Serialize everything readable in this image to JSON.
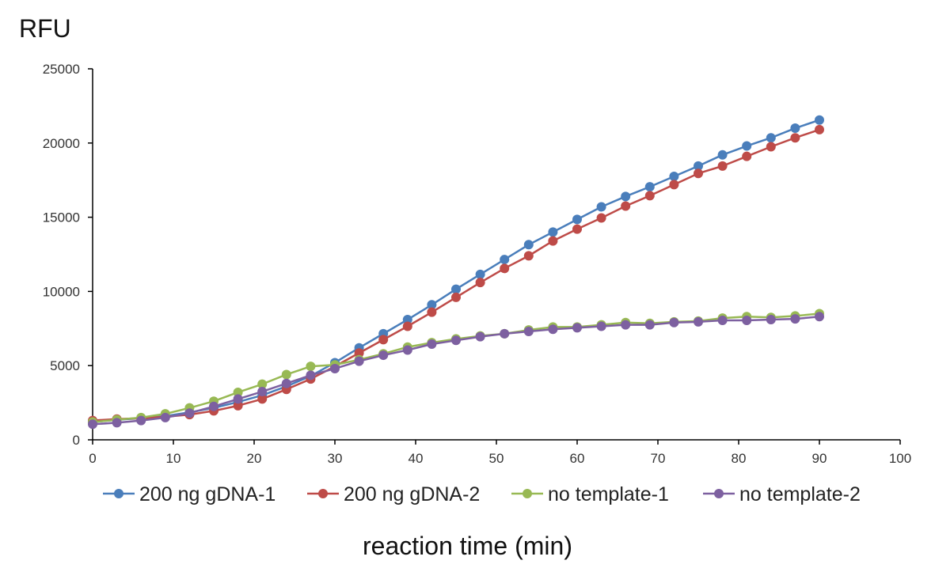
{
  "chart_data": {
    "type": "line",
    "ylabel": "RFU",
    "xlabel": "reaction time (min)",
    "xlim": [
      0,
      100
    ],
    "ylim": [
      0,
      25000
    ],
    "xticks": [
      "0",
      "10",
      "20",
      "30",
      "40",
      "50",
      "60",
      "70",
      "80",
      "90",
      "100"
    ],
    "yticks": [
      "0",
      "5000",
      "10000",
      "15000",
      "20000",
      "25000"
    ],
    "grid": false,
    "legend_position": "bottom",
    "x": [
      0,
      3,
      6,
      9,
      12,
      15,
      18,
      21,
      24,
      27,
      30,
      33,
      36,
      39,
      42,
      45,
      48,
      51,
      54,
      57,
      60,
      63,
      66,
      69,
      72,
      75,
      78,
      81,
      84,
      87,
      90
    ],
    "series": [
      {
        "name": "200 ng gDNA-1",
        "color": "#4a7ebb",
        "values": [
          1200,
          1350,
          1450,
          1600,
          1850,
          2150,
          2550,
          3000,
          3600,
          4300,
          5200,
          6200,
          7150,
          8100,
          9100,
          10150,
          11150,
          12150,
          13150,
          14000,
          14850,
          15700,
          16400,
          17050,
          17750,
          18450,
          19200,
          19800,
          20350,
          21000,
          21550
        ]
      },
      {
        "name": "200 ng gDNA-2",
        "color": "#be4b48",
        "values": [
          1300,
          1400,
          1450,
          1550,
          1700,
          1950,
          2300,
          2750,
          3400,
          4100,
          4950,
          5850,
          6750,
          7650,
          8600,
          9600,
          10600,
          11550,
          12400,
          13400,
          14200,
          14950,
          15750,
          16450,
          17200,
          17950,
          18450,
          19100,
          19750,
          20350,
          20900
        ]
      },
      {
        "name": "no template-1",
        "color": "#98b954",
        "values": [
          1200,
          1350,
          1500,
          1750,
          2150,
          2600,
          3200,
          3750,
          4400,
          4950,
          5050,
          5400,
          5800,
          6250,
          6550,
          6800,
          7000,
          7150,
          7400,
          7600,
          7600,
          7750,
          7900,
          7850,
          7950,
          8000,
          8200,
          8300,
          8250,
          8350,
          8500
        ]
      },
      {
        "name": "no template-2",
        "color": "#7d60a0",
        "values": [
          1050,
          1150,
          1300,
          1500,
          1800,
          2250,
          2750,
          3250,
          3800,
          4350,
          4800,
          5300,
          5700,
          6050,
          6450,
          6700,
          6950,
          7150,
          7300,
          7450,
          7550,
          7650,
          7750,
          7750,
          7900,
          7950,
          8050,
          8050,
          8100,
          8150,
          8300
        ]
      }
    ]
  }
}
